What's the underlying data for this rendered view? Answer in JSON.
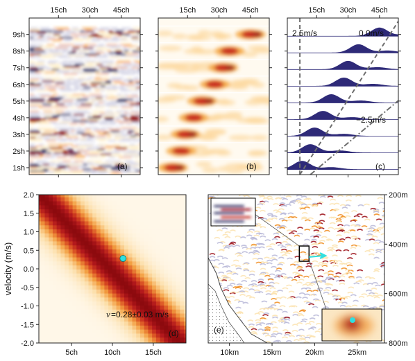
{
  "panels": {
    "a": {
      "label": "(a)"
    },
    "b": {
      "label": "(b)"
    },
    "c": {
      "label": "(c)",
      "annotations": {
        "left_speed": "2.5m/s",
        "right_speed": "0.0m/s",
        "neg_speed": "−2.5m/s"
      }
    },
    "d": {
      "label": "(d)",
      "ylabel": "velocity (m/s)",
      "estimate_text": "=0.28±0.03 m/s",
      "estimate_symbol": "v"
    },
    "e": {
      "label": "(e)"
    }
  },
  "top_axis": {
    "x_ticks": [
      "15ch",
      "30ch",
      "45ch"
    ],
    "x_tick_values": [
      15,
      30,
      45
    ],
    "x_range": [
      1,
      54
    ],
    "y_ticks": [
      "1sh",
      "2sh",
      "3sh",
      "4sh",
      "5sh",
      "6sh",
      "7sh",
      "8sh",
      "9sh"
    ],
    "y_tick_values": [
      1,
      2,
      3,
      4,
      5,
      6,
      7,
      8,
      9
    ]
  },
  "chart_data": [
    {
      "type": "heatmap",
      "panel": "d",
      "x_ticks": [
        "5ch",
        "10ch",
        "15ch"
      ],
      "x_tick_values": [
        5,
        10,
        15
      ],
      "xlim": [
        1,
        19
      ],
      "y_ticks": [
        "2.0",
        "1.5",
        "1.0",
        "0.5",
        "0.0",
        "-0.5",
        "-1.0",
        "-1.5",
        "-2.0"
      ],
      "y_tick_values": [
        2.0,
        1.5,
        1.0,
        0.5,
        0.0,
        -0.5,
        -1.0,
        -1.5,
        -2.0
      ],
      "ylim": [
        -2.0,
        2.0
      ],
      "ylabel": "velocity (m/s)",
      "best_fit": {
        "x": 11.3,
        "y": 0.28
      },
      "colors": {
        "marker": "#2fe0e0",
        "peak": "#8a0a0a",
        "low": "#fff7e8"
      }
    },
    {
      "type": "heatmap",
      "panel": "e",
      "x_ticks": [
        "10km",
        "15km",
        "20km",
        "25km"
      ],
      "x_tick_values": [
        10,
        15,
        20,
        25
      ],
      "xlim": [
        7.5,
        28.2
      ],
      "y_ticks": [
        "200m",
        "400m",
        "600m",
        "800m"
      ],
      "y_tick_values": [
        200,
        400,
        600,
        800
      ],
      "ylim": [
        800,
        200
      ]
    }
  ],
  "colors": {
    "red": "#b4141e",
    "orange": "#f08c1e",
    "yellow": "#fde6a8",
    "blue": "#5a5aa0",
    "navy": "#2e2a78",
    "gray": "#6e6e6e",
    "cyan": "#2fe0e0"
  }
}
